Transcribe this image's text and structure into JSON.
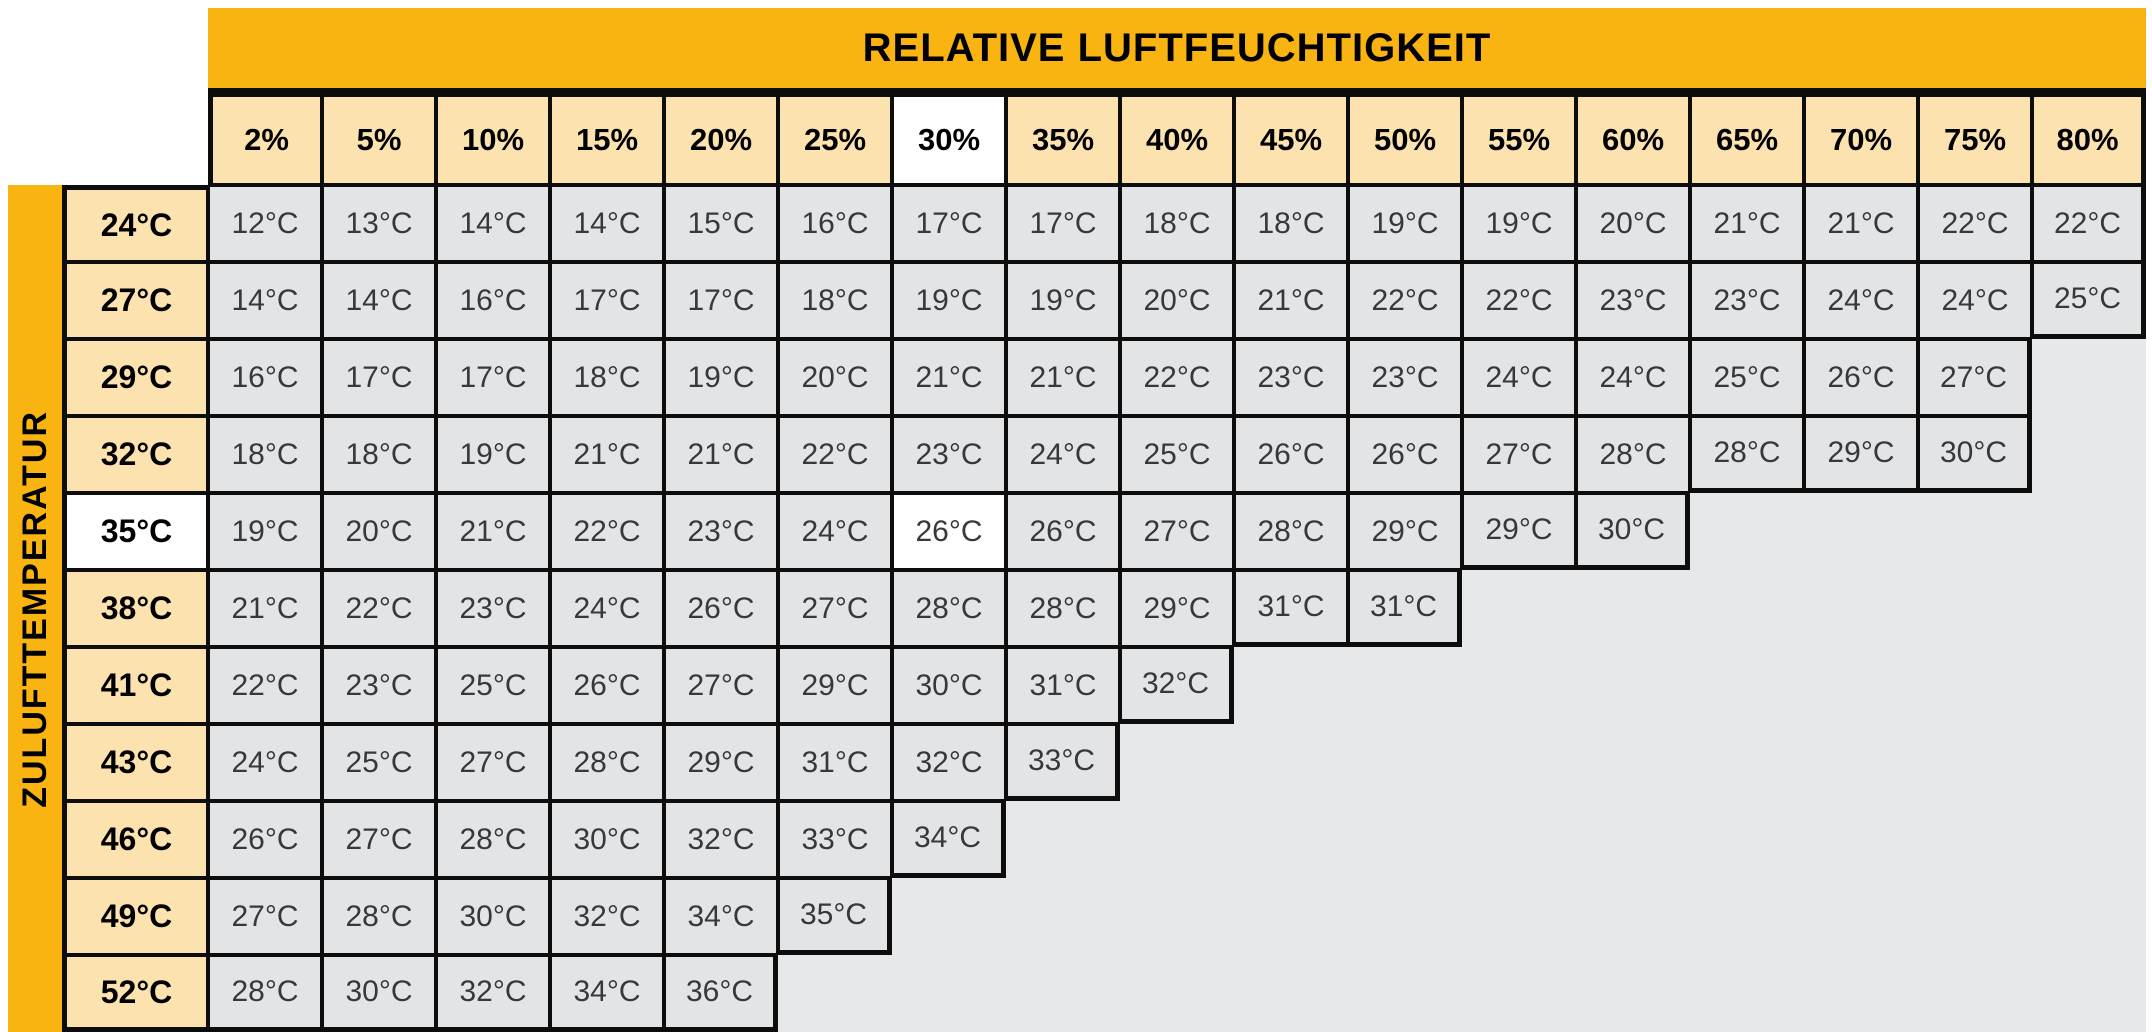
{
  "colors": {
    "band_orange": "#F9B412",
    "header_tint": "#FCE2AF",
    "cell_gray": "#E3E4E6",
    "backdrop_gray": "#E7E8E9",
    "border_black": "#0D0D0D",
    "highlight_white": "#FFFFFF"
  },
  "chart_data": {
    "type": "table",
    "title": "RELATIVE LUFTFEUCHTIGKEIT",
    "row_axis_label": "ZULUFTTEMPERATUR",
    "columns": [
      "2%",
      "5%",
      "10%",
      "15%",
      "20%",
      "25%",
      "30%",
      "35%",
      "40%",
      "45%",
      "50%",
      "55%",
      "60%",
      "65%",
      "70%",
      "75%",
      "80%"
    ],
    "highlighted_column": "30%",
    "highlighted_row": "35°C",
    "highlighted_cell": {
      "row": "35°C",
      "column": "30%",
      "value": "26°C"
    },
    "rows": [
      {
        "label": "24°C",
        "values": [
          "12°C",
          "13°C",
          "14°C",
          "14°C",
          "15°C",
          "16°C",
          "17°C",
          "17°C",
          "18°C",
          "18°C",
          "19°C",
          "19°C",
          "20°C",
          "21°C",
          "21°C",
          "22°C",
          "22°C"
        ]
      },
      {
        "label": "27°C",
        "values": [
          "14°C",
          "14°C",
          "16°C",
          "17°C",
          "17°C",
          "18°C",
          "19°C",
          "19°C",
          "20°C",
          "21°C",
          "22°C",
          "22°C",
          "23°C",
          "23°C",
          "24°C",
          "24°C",
          "25°C"
        ]
      },
      {
        "label": "29°C",
        "values": [
          "16°C",
          "17°C",
          "17°C",
          "18°C",
          "19°C",
          "20°C",
          "21°C",
          "21°C",
          "22°C",
          "23°C",
          "23°C",
          "24°C",
          "24°C",
          "25°C",
          "26°C",
          "27°C"
        ]
      },
      {
        "label": "32°C",
        "values": [
          "18°C",
          "18°C",
          "19°C",
          "21°C",
          "21°C",
          "22°C",
          "23°C",
          "24°C",
          "25°C",
          "26°C",
          "26°C",
          "27°C",
          "28°C",
          "28°C",
          "29°C",
          "30°C"
        ]
      },
      {
        "label": "35°C",
        "values": [
          "19°C",
          "20°C",
          "21°C",
          "22°C",
          "23°C",
          "24°C",
          "26°C",
          "26°C",
          "27°C",
          "28°C",
          "29°C",
          "29°C",
          "30°C"
        ]
      },
      {
        "label": "38°C",
        "values": [
          "21°C",
          "22°C",
          "23°C",
          "24°C",
          "26°C",
          "27°C",
          "28°C",
          "28°C",
          "29°C",
          "31°C",
          "31°C"
        ]
      },
      {
        "label": "41°C",
        "values": [
          "22°C",
          "23°C",
          "25°C",
          "26°C",
          "27°C",
          "29°C",
          "30°C",
          "31°C",
          "32°C"
        ]
      },
      {
        "label": "43°C",
        "values": [
          "24°C",
          "25°C",
          "27°C",
          "28°C",
          "29°C",
          "31°C",
          "32°C",
          "33°C"
        ]
      },
      {
        "label": "46°C",
        "values": [
          "26°C",
          "27°C",
          "28°C",
          "30°C",
          "32°C",
          "33°C",
          "34°C"
        ]
      },
      {
        "label": "49°C",
        "values": [
          "27°C",
          "28°C",
          "30°C",
          "32°C",
          "34°C",
          "35°C"
        ]
      },
      {
        "label": "52°C",
        "values": [
          "28°C",
          "30°C",
          "32°C",
          "34°C",
          "36°C"
        ]
      }
    ]
  }
}
